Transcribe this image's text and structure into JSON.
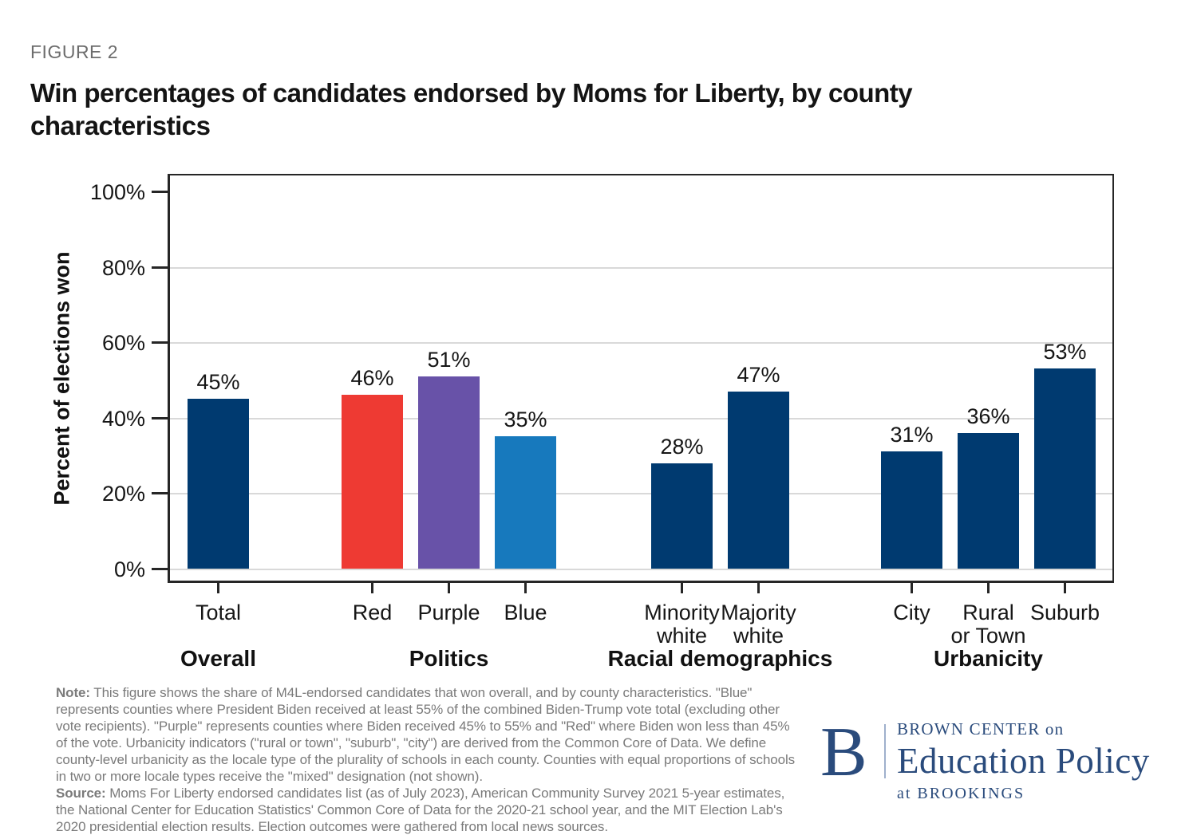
{
  "figure_label": "FIGURE 2",
  "title": "Win percentages of candidates endorsed by Moms for Liberty, by county characteristics",
  "chart_data": {
    "type": "bar",
    "title": "Win percentages of candidates endorsed by Moms for Liberty, by county characteristics",
    "xlabel": "",
    "ylabel": "Percent of elections won",
    "ylim": [
      0,
      100
    ],
    "yticks": [
      0,
      20,
      40,
      60,
      80,
      100
    ],
    "ytick_labels": [
      "0%",
      "20%",
      "40%",
      "60%",
      "80%",
      "100%"
    ],
    "grid": "horizontal-light-gray",
    "legend": "none",
    "groups": [
      {
        "label": "Overall",
        "bars": [
          {
            "category": "Total",
            "category_lines": [
              "Total"
            ],
            "value": 45,
            "data_label": "45%",
            "color": "#003a70"
          }
        ]
      },
      {
        "label": "Politics",
        "bars": [
          {
            "category": "Red",
            "category_lines": [
              "Red"
            ],
            "value": 46,
            "data_label": "46%",
            "color": "#ee3a33"
          },
          {
            "category": "Purple",
            "category_lines": [
              "Purple"
            ],
            "value": 51,
            "data_label": "51%",
            "color": "#6852a8"
          },
          {
            "category": "Blue",
            "category_lines": [
              "Blue"
            ],
            "value": 35,
            "data_label": "35%",
            "color": "#1779bd"
          }
        ]
      },
      {
        "label": "Racial demographics",
        "bars": [
          {
            "category": "Minority white",
            "category_lines": [
              "Minority",
              "white"
            ],
            "value": 28,
            "data_label": "28%",
            "color": "#003a70"
          },
          {
            "category": "Majority white",
            "category_lines": [
              "Majority",
              "white"
            ],
            "value": 47,
            "data_label": "47%",
            "color": "#003a70"
          }
        ]
      },
      {
        "label": "Urbanicity",
        "bars": [
          {
            "category": "City",
            "category_lines": [
              "City"
            ],
            "value": 31,
            "data_label": "31%",
            "color": "#003a70"
          },
          {
            "category": "Rural or Town",
            "category_lines": [
              "Rural",
              "or Town"
            ],
            "value": 36,
            "data_label": "36%",
            "color": "#003a70"
          },
          {
            "category": "Suburb",
            "category_lines": [
              "Suburb"
            ],
            "value": 53,
            "data_label": "53%",
            "color": "#003a70"
          }
        ]
      }
    ],
    "colors": {
      "navy": "#003a70",
      "red": "#ee3a33",
      "purple": "#6852a8",
      "blue": "#1779bd"
    }
  },
  "notes": {
    "note_label": "Note:",
    "note_text": "This figure shows the share of M4L-endorsed candidates that won overall, and by county characteristics. \"Blue\" represents counties where President Biden received at least 55% of the combined Biden-Trump vote total (excluding other vote recipients). \"Purple\" represents counties where Biden received 45% to 55% and \"Red\" where Biden won less than 45% of the vote. Urbanicity indicators (\"rural or town\", \"suburb\", \"city\") are derived from the Common Core of Data. We define county-level urbanicity as the locale type of the plurality of schools in each county. Counties with equal proportions of schools in two or more locale types receive the \"mixed\" designation (not shown).",
    "source_label": "Source:",
    "source_text": "Moms For Liberty endorsed candidates list (as of July 2023), American Community Survey 2021 5-year estimates, the National Center for Education Statistics' Common Core of Data for the 2020-21 school year, and the MIT Election Lab's 2020 presidential election results. Election outcomes were gathered from local news sources."
  },
  "logo": {
    "b": "B",
    "line1": "BROWN CENTER on",
    "line2": "Education Policy",
    "line3": "at BROOKINGS",
    "color": "#2a4b7c"
  }
}
